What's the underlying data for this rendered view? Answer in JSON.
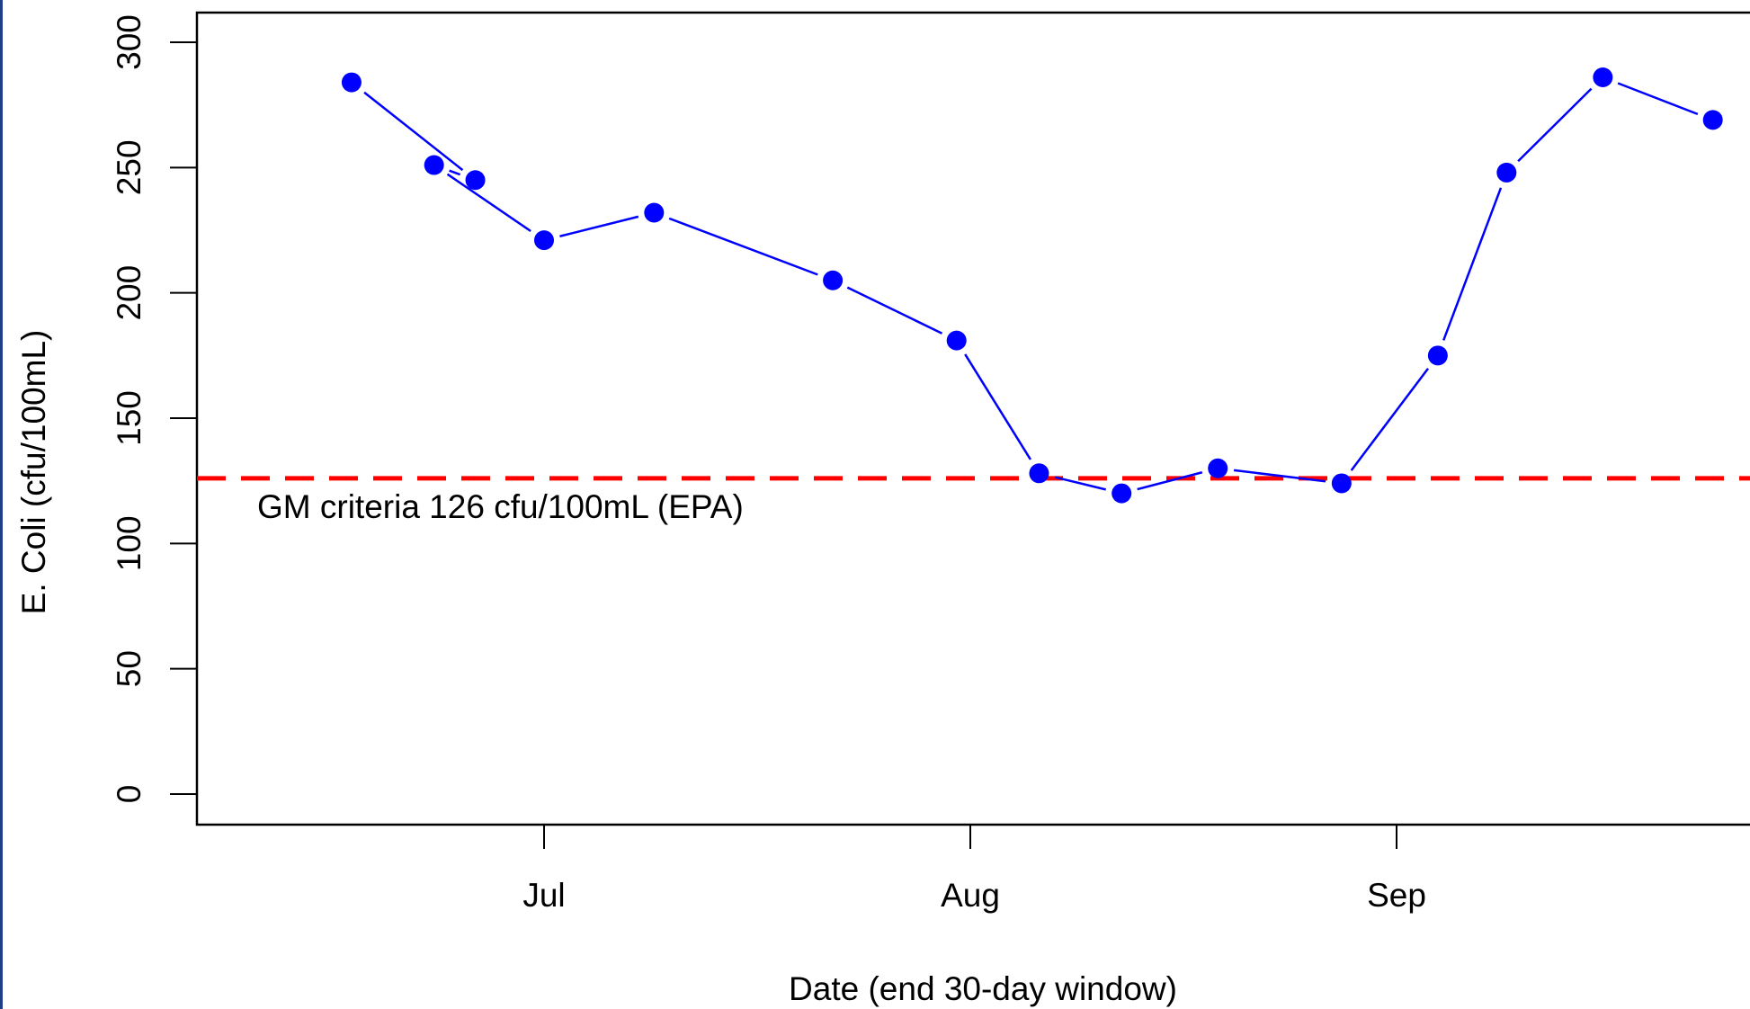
{
  "chart_data": {
    "type": "line",
    "xlabel": "Date (end 30-day window)",
    "ylabel": "E. Coli (cfu/100mL)",
    "ylim": [
      0,
      300
    ],
    "yticks": [
      0,
      50,
      100,
      150,
      200,
      250,
      300
    ],
    "xlim": [
      "2023-06-13",
      "2023-09-24"
    ],
    "xticks": [
      {
        "label": "Jul",
        "date": "2023-07-01"
      },
      {
        "label": "Aug",
        "date": "2023-08-01"
      },
      {
        "label": "Sep",
        "date": "2023-09-01"
      }
    ],
    "grid": false,
    "series": [
      {
        "color": "#0000ff",
        "marker": "circle",
        "points": [
          {
            "x": "2023-06-17",
            "y": 284
          },
          {
            "x": "2023-06-26",
            "y": 245
          },
          {
            "x": "2023-06-23",
            "y": 251
          },
          {
            "x": "2023-07-01",
            "y": 221
          },
          {
            "x": "2023-07-09",
            "y": 232
          },
          {
            "x": "2023-07-22",
            "y": 205
          },
          {
            "x": "2023-07-31",
            "y": 181
          },
          {
            "x": "2023-08-06",
            "y": 128
          },
          {
            "x": "2023-08-12",
            "y": 120
          },
          {
            "x": "2023-08-19",
            "y": 130
          },
          {
            "x": "2023-08-28",
            "y": 124
          },
          {
            "x": "2023-09-04",
            "y": 175
          },
          {
            "x": "2023-09-09",
            "y": 248
          },
          {
            "x": "2023-09-16",
            "y": 286
          },
          {
            "x": "2023-09-24",
            "y": 269
          }
        ]
      }
    ],
    "reference_line": {
      "y": 126,
      "color": "#ff0000",
      "style": "dashed",
      "label": "GM criteria 126 cfu/100mL (EPA)"
    }
  }
}
